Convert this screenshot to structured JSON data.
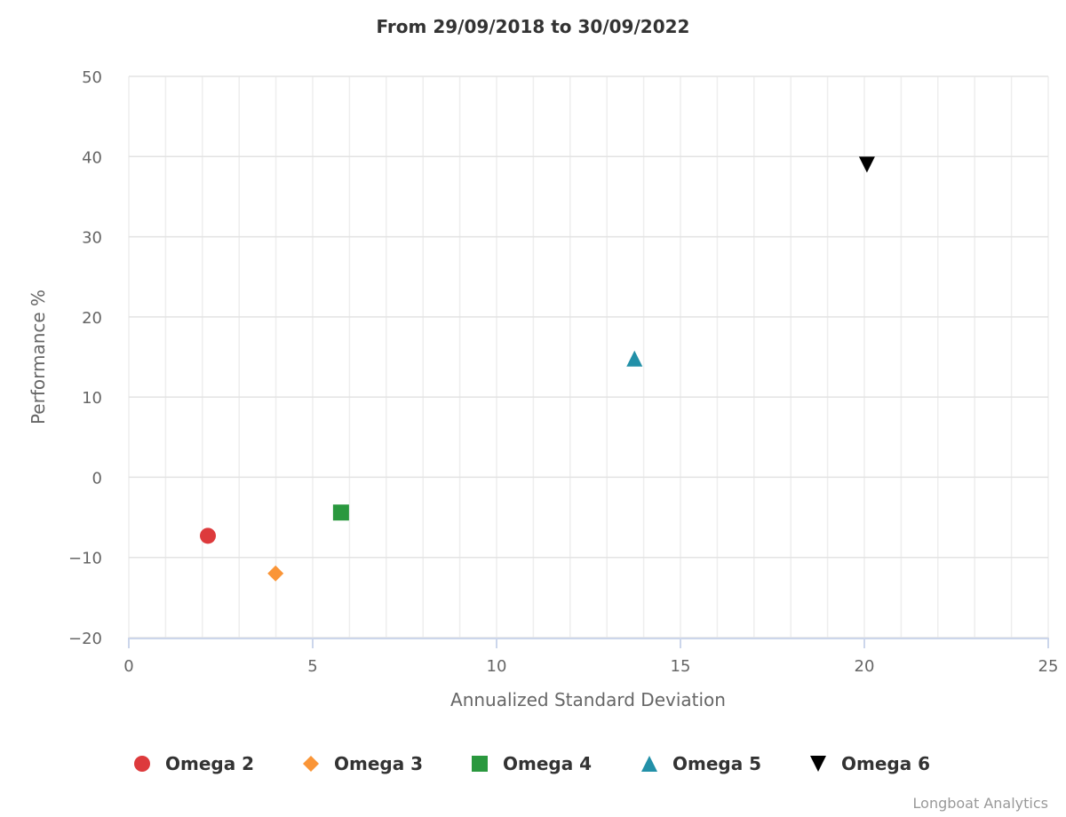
{
  "chart_data": {
    "type": "scatter",
    "title": "From 29/09/2018 to 30/09/2022",
    "xlabel": "Annualized Standard Deviation",
    "ylabel": "Performance %",
    "xlim": [
      0,
      25
    ],
    "ylim": [
      -20,
      50
    ],
    "xticks": [
      0,
      5,
      10,
      15,
      20,
      25
    ],
    "yticks": [
      -20,
      -10,
      0,
      10,
      20,
      30,
      40,
      50
    ],
    "x_minor_grid_interval": 1,
    "grid": true,
    "legend_position": "bottom",
    "series": [
      {
        "name": "Omega 2",
        "color": "#dd3a3c",
        "marker": "circle",
        "x": 2.15,
        "y": -7.3
      },
      {
        "name": "Omega 3",
        "color": "#fa9537",
        "marker": "diamond",
        "x": 3.99,
        "y": -12.0
      },
      {
        "name": "Omega 4",
        "color": "#2a983e",
        "marker": "square",
        "x": 5.77,
        "y": -4.4
      },
      {
        "name": "Omega 5",
        "color": "#2290a8",
        "marker": "triangle",
        "x": 13.75,
        "y": 14.8
      },
      {
        "name": "Omega 6",
        "color": "#000000",
        "marker": "triangle-down",
        "x": 20.07,
        "y": 39.0
      }
    ]
  },
  "credits": "Longboat Analytics"
}
